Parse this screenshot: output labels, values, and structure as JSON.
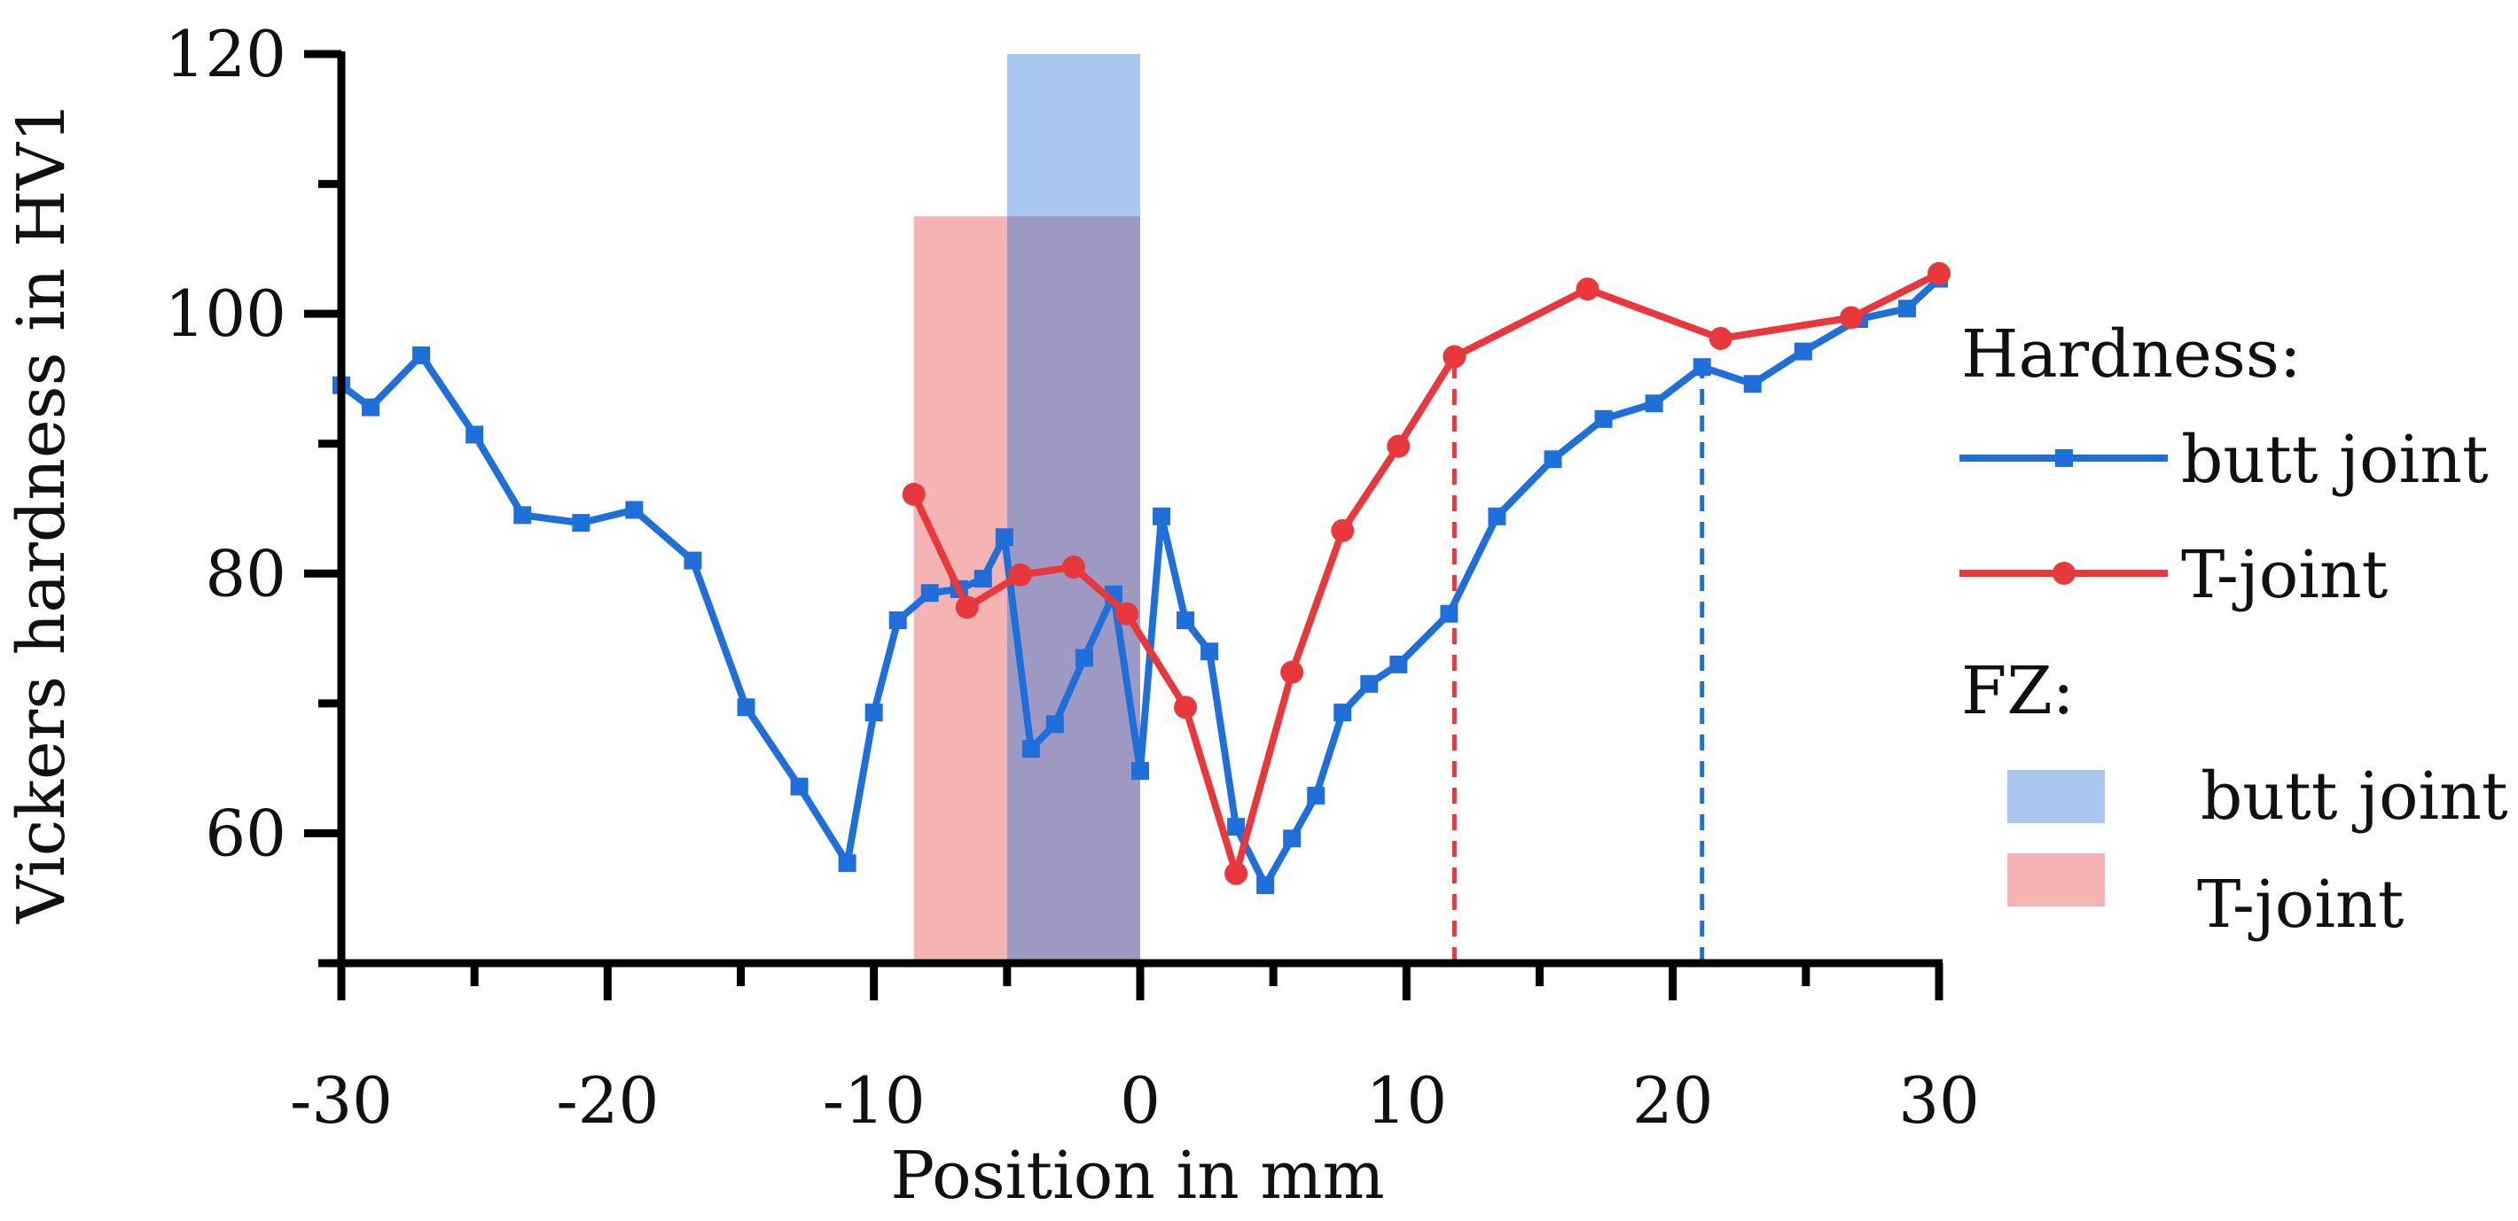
{
  "chart_data": {
    "type": "line",
    "xlabel": "Position in mm",
    "ylabel": "Vickers hardness in HV1",
    "xlim": [
      -30,
      30
    ],
    "ylim": [
      50,
      120
    ],
    "x_ticks": [
      -30,
      -20,
      -10,
      0,
      10,
      20,
      30
    ],
    "y_ticks": [
      60,
      80,
      100,
      120
    ],
    "legend": {
      "position": "right",
      "hardness_title": "Hardness:",
      "fz_title": "FZ:"
    },
    "series": [
      {
        "name": "butt joint",
        "color": "#1f6fdb",
        "marker": "square",
        "linestyle": "solid",
        "points": [
          [
            -30,
            94.5
          ],
          [
            -28.9,
            92.8
          ],
          [
            -27,
            96.8
          ],
          [
            -25,
            90.7
          ],
          [
            -23.2,
            84.5
          ],
          [
            -21,
            83.9
          ],
          [
            -19,
            84.9
          ],
          [
            -16.8,
            81.0
          ],
          [
            -14.8,
            69.7
          ],
          [
            -12.8,
            63.6
          ],
          [
            -11,
            57.7
          ],
          [
            -10,
            69.3
          ],
          [
            -9.1,
            76.4
          ],
          [
            -7.9,
            78.5
          ],
          [
            -6.8,
            78.8
          ],
          [
            -5.9,
            79.6
          ],
          [
            -5.1,
            82.8
          ],
          [
            -4.1,
            66.5
          ],
          [
            -3.2,
            68.4
          ],
          [
            -2.1,
            73.5
          ],
          [
            -1.0,
            78.4
          ],
          [
            0,
            64.8
          ],
          [
            0.8,
            84.4
          ],
          [
            1.7,
            76.4
          ],
          [
            2.6,
            74.0
          ],
          [
            3.6,
            60.5
          ],
          [
            4.7,
            56.0
          ],
          [
            5.7,
            59.6
          ],
          [
            6.6,
            62.9
          ],
          [
            7.6,
            69.3
          ],
          [
            8.6,
            71.5
          ],
          [
            9.7,
            73.0
          ],
          [
            11.6,
            76.9
          ],
          [
            13.4,
            84.4
          ],
          [
            15.5,
            88.8
          ],
          [
            17.4,
            91.9
          ],
          [
            19.3,
            93.1
          ],
          [
            21.1,
            95.9
          ],
          [
            23,
            94.6
          ],
          [
            24.9,
            97.1
          ],
          [
            27,
            99.6
          ],
          [
            28.8,
            100.4
          ],
          [
            30,
            102.7
          ]
        ]
      },
      {
        "name": "T-joint",
        "color": "#e8383b",
        "marker": "circle",
        "linestyle": "solid",
        "points": [
          [
            -8.5,
            86.1
          ],
          [
            -6.5,
            77.4
          ],
          [
            -4.5,
            79.9
          ],
          [
            -2.5,
            80.5
          ],
          [
            -0.5,
            76.9
          ],
          [
            1.7,
            69.7
          ],
          [
            3.6,
            56.9
          ],
          [
            5.7,
            72.4
          ],
          [
            7.6,
            83.3
          ],
          [
            9.7,
            89.8
          ],
          [
            11.8,
            96.7
          ],
          [
            16.8,
            101.9
          ],
          [
            21.8,
            98.1
          ],
          [
            26.7,
            99.7
          ],
          [
            30,
            103.1
          ]
        ]
      }
    ],
    "regions": [
      {
        "name": "butt joint",
        "x_range": [
          -5,
          0
        ],
        "y_range": [
          50,
          120
        ],
        "color": "#a8c6ef"
      },
      {
        "name": "T-joint",
        "x_range": [
          -8.5,
          -5
        ],
        "y_range": [
          50,
          107.5
        ],
        "color": "#f6b3b3"
      },
      {
        "name": "overlap",
        "x_range": [
          -5,
          0
        ],
        "y_range": [
          50,
          107.5
        ],
        "color": "#9d99c3"
      }
    ],
    "reference_lines": [
      {
        "series": "T-joint",
        "x": 11.8,
        "y_top": 96.7,
        "color": "#e8383b",
        "linestyle": "dashed"
      },
      {
        "series": "butt joint",
        "x": 21.1,
        "y_top": 95.9,
        "color": "#1f6fdb",
        "linestyle": "dashed"
      }
    ]
  }
}
